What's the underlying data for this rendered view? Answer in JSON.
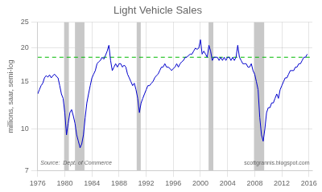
{
  "chart_data": {
    "type": "line",
    "title": "Light Vehicle Sales",
    "y_label": "millions, saar, semi-log",
    "annotations": [
      "Source:  Dept. of Commerce",
      "scottgrannis.blogspot.com"
    ],
    "log": "y",
    "grid": true,
    "xlim": [
      1976,
      2016.5
    ],
    "ylim": [
      7,
      25
    ],
    "yticks": [
      7,
      10,
      15,
      20,
      25
    ],
    "xticks": [
      1976,
      1980,
      1984,
      1988,
      1992,
      1996,
      2000,
      2004,
      2008,
      2012,
      2016
    ],
    "reference_line": {
      "value": 18.5,
      "color": "#00bb00",
      "line_style": "dashed"
    },
    "recession_bands": {
      "ranges": [
        [
          1979.9,
          1980.6
        ],
        [
          1981.5,
          1982.9
        ],
        [
          1990.6,
          1991.2
        ],
        [
          2001.2,
          2001.9
        ],
        [
          2007.9,
          2009.4
        ]
      ],
      "color": "#c8c8c8"
    },
    "color": "#0000cc",
    "x": [
      1976.0,
      1976.25,
      1976.5,
      1976.75,
      1977.0,
      1977.25,
      1977.5,
      1977.75,
      1978.0,
      1978.25,
      1978.5,
      1978.75,
      1979.0,
      1979.25,
      1979.5,
      1979.75,
      1980.0,
      1980.25,
      1980.5,
      1980.75,
      1981.0,
      1981.25,
      1981.5,
      1981.75,
      1982.0,
      1982.25,
      1982.5,
      1982.75,
      1983.0,
      1983.25,
      1983.5,
      1983.75,
      1984.0,
      1984.25,
      1984.5,
      1984.75,
      1985.0,
      1985.25,
      1985.5,
      1985.75,
      1986.0,
      1986.25,
      1986.5,
      1986.75,
      1987.0,
      1987.25,
      1987.5,
      1987.75,
      1988.0,
      1988.25,
      1988.5,
      1988.75,
      1989.0,
      1989.25,
      1989.5,
      1989.75,
      1990.0,
      1990.25,
      1990.5,
      1990.75,
      1991.0,
      1991.25,
      1991.5,
      1991.75,
      1992.0,
      1992.25,
      1992.5,
      1992.75,
      1993.0,
      1993.25,
      1993.5,
      1993.75,
      1994.0,
      1994.25,
      1994.5,
      1994.75,
      1995.0,
      1995.25,
      1995.5,
      1995.75,
      1996.0,
      1996.25,
      1996.5,
      1996.75,
      1997.0,
      1997.25,
      1997.5,
      1997.75,
      1998.0,
      1998.25,
      1998.5,
      1998.75,
      1999.0,
      1999.25,
      1999.5,
      1999.75,
      2000.0,
      2000.25,
      2000.5,
      2000.75,
      2001.0,
      2001.25,
      2001.5,
      2001.75,
      2002.0,
      2002.25,
      2002.5,
      2002.75,
      2003.0,
      2003.25,
      2003.5,
      2003.75,
      2004.0,
      2004.25,
      2004.5,
      2004.75,
      2005.0,
      2005.25,
      2005.5,
      2005.75,
      2006.0,
      2006.25,
      2006.5,
      2006.75,
      2007.0,
      2007.25,
      2007.5,
      2007.75,
      2008.0,
      2008.25,
      2008.5,
      2008.75,
      2009.0,
      2009.25,
      2009.5,
      2009.75,
      2010.0,
      2010.25,
      2010.5,
      2010.75,
      2011.0,
      2011.25,
      2011.5,
      2011.75,
      2012.0,
      2012.25,
      2012.5,
      2012.75,
      2013.0,
      2013.25,
      2013.5,
      2013.75,
      2014.0,
      2014.25,
      2014.5,
      2014.75,
      2015.0,
      2015.25,
      2015.5,
      2015.75
    ],
    "values": [
      13.5,
      14.0,
      14.5,
      14.8,
      15.5,
      15.8,
      15.6,
      15.9,
      15.5,
      15.8,
      16.0,
      15.7,
      15.5,
      14.5,
      13.5,
      13.0,
      11.5,
      9.5,
      10.5,
      11.5,
      11.8,
      11.2,
      10.5,
      9.5,
      9.0,
      8.5,
      8.8,
      9.5,
      11.0,
      12.5,
      13.5,
      14.5,
      15.5,
      16.0,
      16.5,
      17.5,
      17.8,
      18.0,
      18.5,
      18.2,
      18.8,
      19.5,
      20.5,
      18.0,
      16.5,
      17.0,
      17.5,
      17.0,
      17.5,
      17.5,
      17.0,
      17.3,
      17.0,
      16.0,
      15.5,
      15.0,
      14.5,
      14.8,
      14.0,
      13.0,
      11.5,
      12.5,
      13.0,
      13.5,
      14.0,
      14.5,
      14.5,
      14.8,
      15.0,
      15.5,
      15.8,
      16.0,
      16.5,
      17.0,
      17.0,
      17.5,
      17.0,
      17.0,
      16.8,
      16.5,
      16.8,
      17.0,
      17.5,
      17.0,
      17.5,
      17.8,
      18.0,
      18.5,
      18.5,
      18.8,
      19.0,
      19.0,
      19.5,
      20.0,
      19.8,
      20.0,
      21.5,
      19.0,
      19.5,
      19.0,
      18.5,
      20.5,
      19.5,
      18.0,
      18.5,
      18.5,
      18.5,
      18.0,
      18.5,
      18.0,
      18.5,
      18.0,
      18.5,
      18.5,
      18.0,
      18.5,
      18.0,
      18.5,
      20.5,
      18.5,
      18.0,
      17.5,
      17.5,
      17.5,
      17.0,
      17.0,
      17.5,
      16.5,
      16.0,
      15.0,
      14.0,
      11.0,
      9.5,
      9.0,
      10.0,
      11.5,
      12.0,
      12.0,
      12.5,
      12.5,
      13.0,
      13.5,
      13.0,
      14.0,
      14.5,
      15.0,
      15.5,
      15.5,
      16.0,
      16.5,
      16.5,
      16.5,
      17.0,
      17.0,
      17.5,
      17.5,
      18.0,
      18.5,
      18.5,
      19.0
    ]
  }
}
